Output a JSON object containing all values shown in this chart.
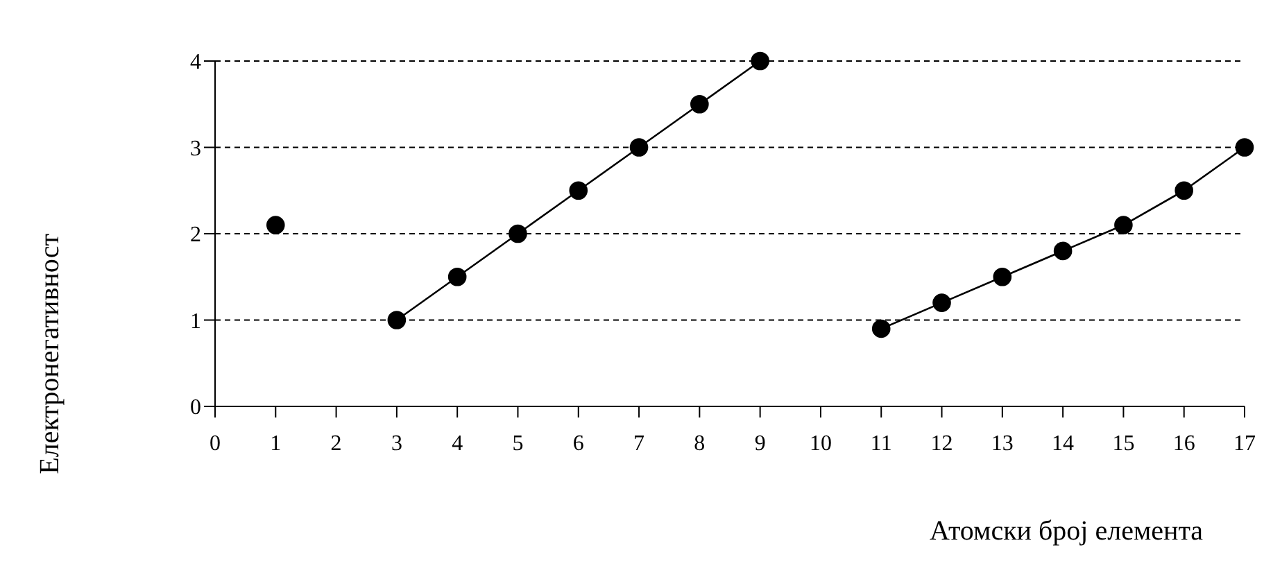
{
  "chart_data": {
    "type": "line",
    "xlabel": "Атомски број елемента",
    "ylabel": "Електронегативност",
    "x": [
      1,
      2,
      3,
      4,
      5,
      6,
      7,
      8,
      9,
      10,
      11,
      12,
      13,
      14,
      15,
      16,
      17
    ],
    "series": [
      {
        "color": "#000000",
        "values": [
          2.1,
          null,
          1.0,
          1.5,
          2.0,
          2.5,
          3.0,
          3.5,
          4.0,
          null,
          0.9,
          1.2,
          1.5,
          1.8,
          2.1,
          2.5,
          3.0
        ]
      }
    ],
    "xlim": [
      0,
      17
    ],
    "xticks": [
      0,
      1,
      2,
      3,
      4,
      5,
      6,
      7,
      8,
      9,
      10,
      11,
      12,
      13,
      14,
      15,
      16,
      17
    ],
    "ylim": [
      0,
      4
    ],
    "yticks": [
      0,
      1,
      2,
      3,
      4
    ],
    "grid": "y",
    "marker": "circle",
    "line_style": "solid"
  }
}
